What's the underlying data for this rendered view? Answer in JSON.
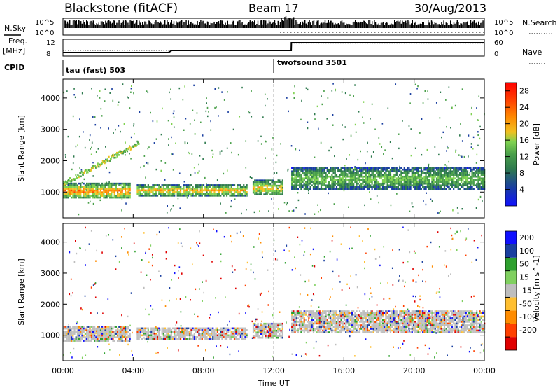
{
  "header": {
    "station": "Blackstone (fitACF)",
    "beam": "Beam 17",
    "date": "30/Aug/2013"
  },
  "panels": {
    "nsky_label": "N.Sky",
    "nsearch_label": "N.Search",
    "nsky_ticks": [
      "10^5",
      "10^0"
    ],
    "nsearch_ticks": [
      "10^5",
      "10^0"
    ],
    "freq_label": "Freq.",
    "freq_unit": "[MHz]",
    "freq_ticks": [
      "12",
      "8"
    ],
    "nave_label": "Nave",
    "nave_ticks": [
      "60",
      "0"
    ],
    "cpid_label": "CPID",
    "cpid_segments": [
      "tau (fast) 503",
      "twofsound 3501"
    ]
  },
  "colors": {
    "power": [
      "#1010ff",
      "#1a3fa0",
      "#2e7a4e",
      "#4aa04a",
      "#7fd250",
      "#f0c020",
      "#ff8a00",
      "#ff4500",
      "#ff0000"
    ],
    "velocity": [
      "#e00000",
      "#ff4000",
      "#ff8c00",
      "#ffbf30",
      "#bebebe",
      "#80d060",
      "#2ea02e",
      "#1a40a0",
      "#1010ff"
    ],
    "ground_scatter": "#bebebe"
  },
  "chart_data": [
    {
      "type": "heatmap",
      "name": "power",
      "x": [
        "00:00",
        "04:00",
        "08:00",
        "12:00",
        "16:00",
        "20:00",
        "00:00"
      ],
      "xlim_hours": [
        0,
        24
      ],
      "ylabel": "Slant Range [km]",
      "ylim": [
        180,
        4600
      ],
      "yticks": [
        1000,
        2000,
        3000,
        4000
      ],
      "colorbar": {
        "label": "Power [dB]",
        "ticks": [
          28,
          24,
          20,
          16,
          12,
          8,
          4
        ],
        "range": [
          0,
          30
        ]
      },
      "echo_bands": [
        {
          "t_start": 0.0,
          "t_end": 3.8,
          "range_km": [
            800,
            1300
          ],
          "power_db": 24
        },
        {
          "t_start": 4.2,
          "t_end": 10.5,
          "range_km": [
            900,
            1250
          ],
          "power_db": 22
        },
        {
          "t_start": 10.8,
          "t_end": 12.5,
          "range_km": [
            900,
            1400
          ],
          "power_db": 20
        },
        {
          "t_start": 13.0,
          "t_end": 24.0,
          "range_km": [
            1100,
            1800
          ],
          "power_db": 14
        }
      ]
    },
    {
      "type": "heatmap",
      "name": "velocity",
      "x": [
        "00:00",
        "04:00",
        "08:00",
        "12:00",
        "16:00",
        "20:00",
        "00:00"
      ],
      "xlim_hours": [
        0,
        24
      ],
      "xlabel": "Time UT",
      "ylabel": "Slant Range [km]",
      "ylim": [
        180,
        4600
      ],
      "yticks": [
        1000,
        2000,
        3000,
        4000
      ],
      "colorbar": {
        "label": "Velocity [m s^-1]",
        "ticks": [
          200,
          100,
          50,
          15,
          -15,
          -50,
          -100,
          -200
        ],
        "range": [
          -250,
          250
        ]
      }
    },
    {
      "type": "line",
      "name": "frequency",
      "x_hours": [
        0,
        6,
        6.2,
        13,
        13.01,
        24
      ],
      "ylabel": "Freq. [MHz]",
      "y": [
        9.0,
        9.0,
        9.6,
        9.6,
        11.8,
        11.8
      ]
    },
    {
      "type": "line",
      "name": "nave",
      "x_hours": [
        0,
        13,
        13.01,
        24
      ],
      "ylabel": "Nave",
      "y": [
        22,
        22,
        50,
        50
      ]
    }
  ]
}
